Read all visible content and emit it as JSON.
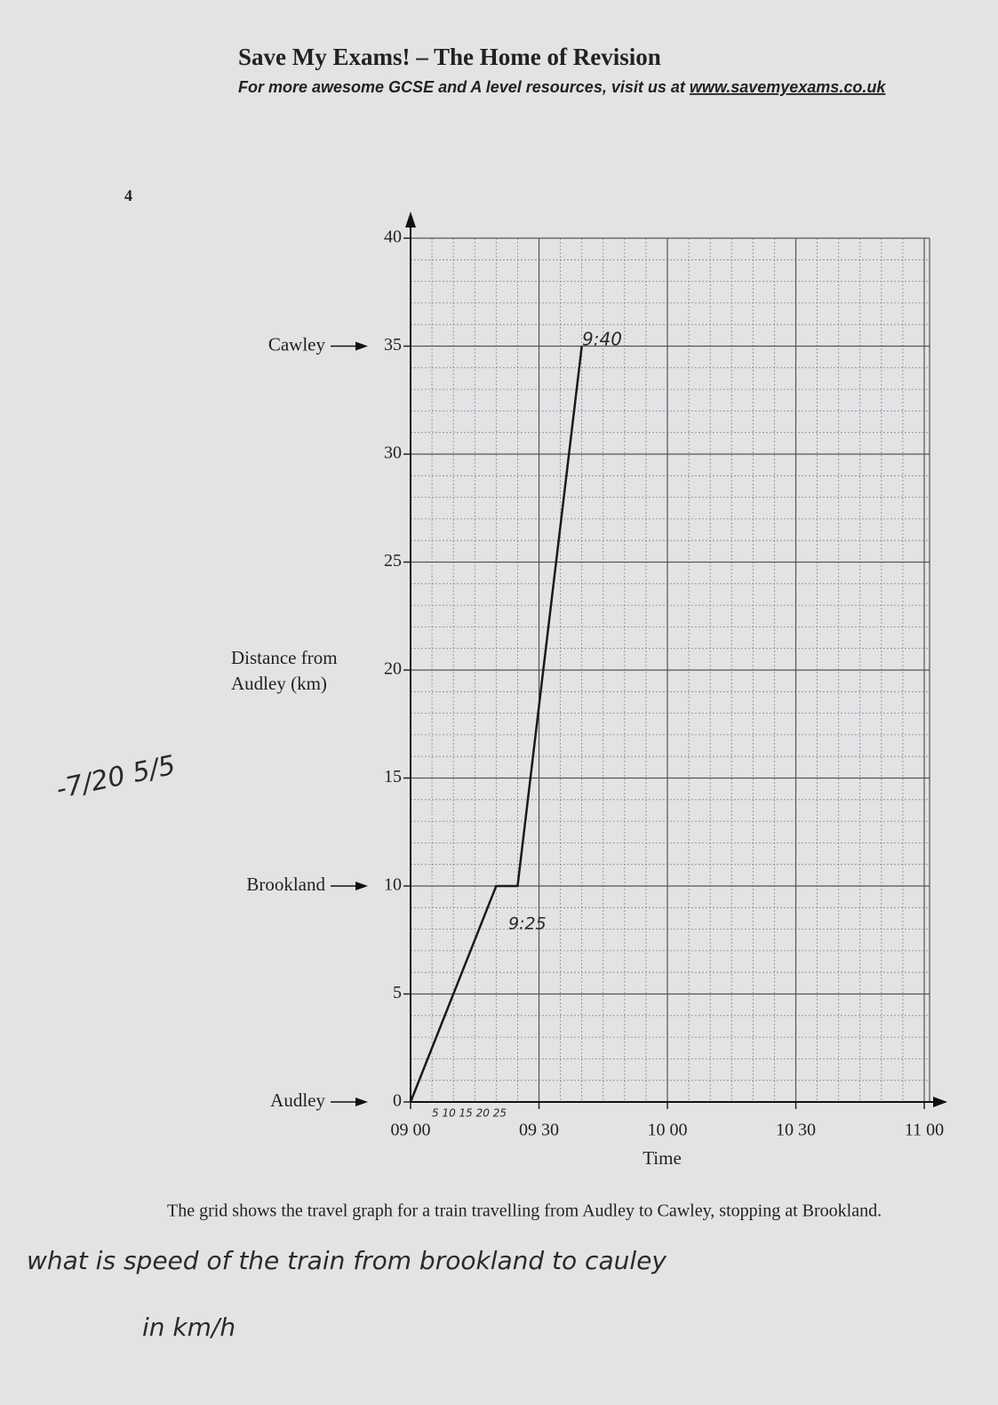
{
  "header": {
    "title": "Save My Exams! – The Home of Revision",
    "subtitle": "For more awesome GCSE and A level resources, visit us at",
    "link": "www.savemyexams.co.uk"
  },
  "question_number": "4",
  "chart_data": {
    "type": "line",
    "x_label": "Time",
    "y_label": [
      "Distance from",
      "Audley (km)"
    ],
    "x": [
      0,
      20,
      25,
      40
    ],
    "values": [
      0,
      10,
      10,
      35
    ],
    "color": "#1a1a1a",
    "xlim": [
      0,
      120
    ],
    "xticks": [
      {
        "value": 0,
        "label": "09 00"
      },
      {
        "value": 30,
        "label": "09 30"
      },
      {
        "value": 60,
        "label": "10 00"
      },
      {
        "value": 90,
        "label": "10 30"
      },
      {
        "value": 120,
        "label": "11 00"
      }
    ],
    "ylim": [
      0,
      40
    ],
    "yticks": [
      0,
      5,
      10,
      15,
      20,
      25,
      30,
      35,
      40
    ],
    "grid": true,
    "annotations": [
      {
        "text": "Cawley",
        "y": 35
      },
      {
        "text": "Brookland",
        "y": 10
      },
      {
        "text": "Audley",
        "y": 0
      }
    ]
  },
  "caption": "The grid shows the travel graph for a train travelling from Audley to Cawley, stopping at Brookland.",
  "handwriting": {
    "time_top": "9:40",
    "time_mid": "9:25",
    "minutes": "5 10 15 20 25",
    "margin": "-7/20 5/5",
    "question_line1": "what is speed of the train from brookland to cauley",
    "question_line2": "in km/h"
  }
}
